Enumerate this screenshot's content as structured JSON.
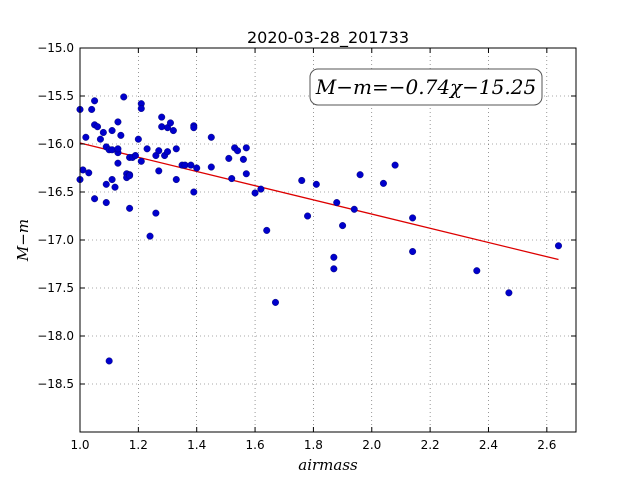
{
  "chart_data": {
    "type": "scatter",
    "title": "2020-03-28_201733",
    "xlabel": "airmass",
    "ylabel": "M−m",
    "xlim": [
      1.0,
      2.7
    ],
    "ylim": [
      -19.0,
      -15.0
    ],
    "y_inverted": true,
    "grid": true,
    "x_ticks": [
      "1.0",
      "1.2",
      "1.4",
      "1.6",
      "1.8",
      "2.0",
      "2.2",
      "2.4",
      "2.6"
    ],
    "x_tick_values": [
      1.0,
      1.2,
      1.4,
      1.6,
      1.8,
      2.0,
      2.2,
      2.4,
      2.6
    ],
    "y_ticks": [
      "−15.0",
      "−15.5",
      "−16.0",
      "−16.5",
      "−17.0",
      "−17.5",
      "−18.0",
      "−18.5"
    ],
    "y_tick_values": [
      -15.0,
      -15.5,
      -16.0,
      -16.5,
      -17.0,
      -17.5,
      -18.0,
      -18.5
    ],
    "annotation": "M−m=−0.74χ−15.25",
    "annotation_position": "top-right",
    "point_color": "#0000cc",
    "fit_color": "#dd0000",
    "fit": {
      "slope": -0.74,
      "intercept": -15.25
    },
    "points": [
      [
        1.0,
        -15.64
      ],
      [
        1.0,
        -16.37
      ],
      [
        1.01,
        -16.27
      ],
      [
        1.02,
        -15.93
      ],
      [
        1.03,
        -16.3
      ],
      [
        1.04,
        -15.64
      ],
      [
        1.05,
        -15.55
      ],
      [
        1.05,
        -15.8
      ],
      [
        1.05,
        -16.57
      ],
      [
        1.06,
        -15.82
      ],
      [
        1.07,
        -15.95
      ],
      [
        1.08,
        -15.88
      ],
      [
        1.09,
        -16.03
      ],
      [
        1.09,
        -16.42
      ],
      [
        1.09,
        -16.61
      ],
      [
        1.1,
        -16.06
      ],
      [
        1.1,
        -18.26
      ],
      [
        1.11,
        -15.86
      ],
      [
        1.11,
        -16.06
      ],
      [
        1.11,
        -16.37
      ],
      [
        1.12,
        -16.45
      ],
      [
        1.13,
        -15.77
      ],
      [
        1.13,
        -16.09
      ],
      [
        1.13,
        -16.05
      ],
      [
        1.13,
        -16.2
      ],
      [
        1.14,
        -15.91
      ],
      [
        1.15,
        -15.51
      ],
      [
        1.16,
        -16.31
      ],
      [
        1.16,
        -16.35
      ],
      [
        1.17,
        -16.14
      ],
      [
        1.17,
        -16.32
      ],
      [
        1.17,
        -16.33
      ],
      [
        1.17,
        -16.67
      ],
      [
        1.18,
        -16.14
      ],
      [
        1.19,
        -16.12
      ],
      [
        1.2,
        -15.95
      ],
      [
        1.21,
        -16.18
      ],
      [
        1.21,
        -15.58
      ],
      [
        1.21,
        -15.63
      ],
      [
        1.23,
        -16.05
      ],
      [
        1.24,
        -16.96
      ],
      [
        1.26,
        -16.12
      ],
      [
        1.26,
        -16.72
      ],
      [
        1.27,
        -16.28
      ],
      [
        1.27,
        -16.07
      ],
      [
        1.28,
        -15.82
      ],
      [
        1.28,
        -15.72
      ],
      [
        1.29,
        -16.12
      ],
      [
        1.3,
        -16.08
      ],
      [
        1.3,
        -15.83
      ],
      [
        1.31,
        -15.78
      ],
      [
        1.32,
        -15.86
      ],
      [
        1.33,
        -16.37
      ],
      [
        1.33,
        -16.05
      ],
      [
        1.35,
        -16.22
      ],
      [
        1.36,
        -16.22
      ],
      [
        1.38,
        -16.22
      ],
      [
        1.39,
        -15.81
      ],
      [
        1.39,
        -15.83
      ],
      [
        1.39,
        -16.5
      ],
      [
        1.4,
        -16.25
      ],
      [
        1.45,
        -15.93
      ],
      [
        1.45,
        -16.24
      ],
      [
        1.51,
        -16.15
      ],
      [
        1.52,
        -16.36
      ],
      [
        1.53,
        -16.04
      ],
      [
        1.54,
        -16.07
      ],
      [
        1.56,
        -16.16
      ],
      [
        1.57,
        -16.04
      ],
      [
        1.57,
        -16.31
      ],
      [
        1.6,
        -16.51
      ],
      [
        1.62,
        -16.47
      ],
      [
        1.64,
        -16.9
      ],
      [
        1.67,
        -17.65
      ],
      [
        1.76,
        -16.38
      ],
      [
        1.78,
        -16.75
      ],
      [
        1.81,
        -16.42
      ],
      [
        1.87,
        -17.3
      ],
      [
        1.87,
        -17.18
      ],
      [
        1.88,
        -16.61
      ],
      [
        1.9,
        -16.85
      ],
      [
        1.94,
        -16.68
      ],
      [
        1.96,
        -16.32
      ],
      [
        2.04,
        -16.41
      ],
      [
        2.08,
        -16.22
      ],
      [
        2.14,
        -16.77
      ],
      [
        2.14,
        -17.12
      ],
      [
        2.36,
        -17.32
      ],
      [
        2.47,
        -17.55
      ],
      [
        2.64,
        -17.06
      ]
    ]
  }
}
